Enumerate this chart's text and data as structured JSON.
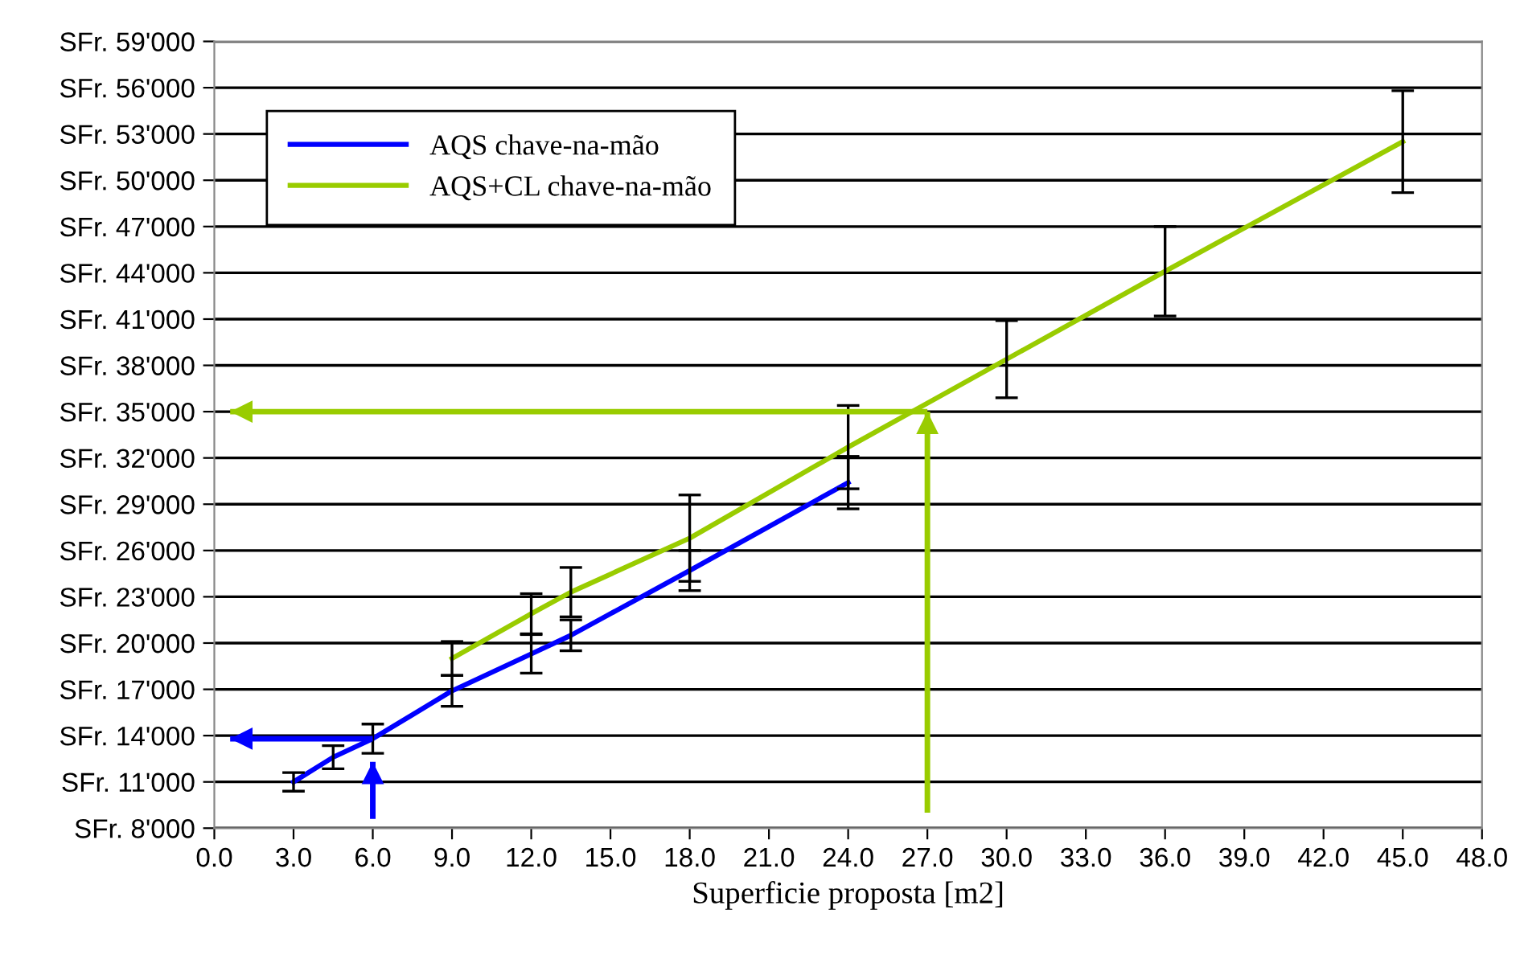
{
  "chart_data": {
    "type": "line",
    "xlabel": "Superficie proposta [m2]",
    "xlim": [
      0,
      48
    ],
    "xticks": [
      {
        "value": 0,
        "label": "0.0"
      },
      {
        "value": 3,
        "label": "3.0"
      },
      {
        "value": 6,
        "label": "6.0"
      },
      {
        "value": 9,
        "label": "9.0"
      },
      {
        "value": 12,
        "label": "12.0"
      },
      {
        "value": 15,
        "label": "15.0"
      },
      {
        "value": 18,
        "label": "18.0"
      },
      {
        "value": 21,
        "label": "21.0"
      },
      {
        "value": 24,
        "label": "24.0"
      },
      {
        "value": 27,
        "label": "27.0"
      },
      {
        "value": 30,
        "label": "30.0"
      },
      {
        "value": 33,
        "label": "33.0"
      },
      {
        "value": 36,
        "label": "36.0"
      },
      {
        "value": 39,
        "label": "39.0"
      },
      {
        "value": 42,
        "label": "42.0"
      },
      {
        "value": 45,
        "label": "45.0"
      },
      {
        "value": 48,
        "label": "48.0"
      }
    ],
    "ylim": [
      8000,
      59000
    ],
    "yticks": [
      {
        "value": 8000,
        "label": "SFr. 8'000"
      },
      {
        "value": 11000,
        "label": "SFr. 11'000"
      },
      {
        "value": 14000,
        "label": "SFr. 14'000"
      },
      {
        "value": 17000,
        "label": "SFr. 17'000"
      },
      {
        "value": 20000,
        "label": "SFr. 20'000"
      },
      {
        "value": 23000,
        "label": "SFr. 23'000"
      },
      {
        "value": 26000,
        "label": "SFr. 26'000"
      },
      {
        "value": 29000,
        "label": "SFr. 29'000"
      },
      {
        "value": 32000,
        "label": "SFr. 32'000"
      },
      {
        "value": 35000,
        "label": "SFr. 35'000"
      },
      {
        "value": 38000,
        "label": "SFr. 38'000"
      },
      {
        "value": 41000,
        "label": "SFr. 41'000"
      },
      {
        "value": 44000,
        "label": "SFr. 44'000"
      },
      {
        "value": 47000,
        "label": "SFr. 47'000"
      },
      {
        "value": 50000,
        "label": "SFr. 50'000"
      },
      {
        "value": 53000,
        "label": "SFr. 53'000"
      },
      {
        "value": 56000,
        "label": "SFr. 56'000"
      },
      {
        "value": 59000,
        "label": "SFr. 59'000"
      }
    ],
    "grid": "y",
    "legend": "top left",
    "marker": "none",
    "line_style": "solid",
    "series": [
      {
        "name": "AQS chave-na-mão",
        "color": "#0000ff",
        "x": [
          3,
          4.5,
          6,
          9,
          12,
          13.5,
          18,
          24
        ],
        "values": [
          11000,
          12600,
          13800,
          16900,
          19300,
          20500,
          24700,
          30400
        ],
        "errors": [
          600,
          750,
          950,
          1000,
          1250,
          1000,
          1300,
          1700
        ]
      },
      {
        "name": "AQS+CL chave-na-mão",
        "color": "#99cc00",
        "x": [
          9,
          12,
          13.5,
          18,
          24,
          30,
          36,
          45
        ],
        "values": [
          19000,
          21900,
          23300,
          26800,
          32700,
          38400,
          44100,
          52500
        ],
        "errors": [
          1100,
          1300,
          1600,
          2800,
          2700,
          2500,
          2900,
          3300
        ]
      },
      {
        "color": "#0000ff",
        "x": [
          6,
          6
        ],
        "values": [
          8600,
          12300
        ]
      },
      {
        "color": "#0000ff",
        "x": [
          6,
          0.6
        ],
        "values": [
          13800,
          13800
        ]
      },
      {
        "color": "#99cc00",
        "x": [
          27,
          27
        ],
        "values": [
          9000,
          35000
        ]
      },
      {
        "color": "#99cc00",
        "x": [
          27,
          0.6
        ],
        "values": [
          35000,
          35000
        ]
      }
    ]
  }
}
